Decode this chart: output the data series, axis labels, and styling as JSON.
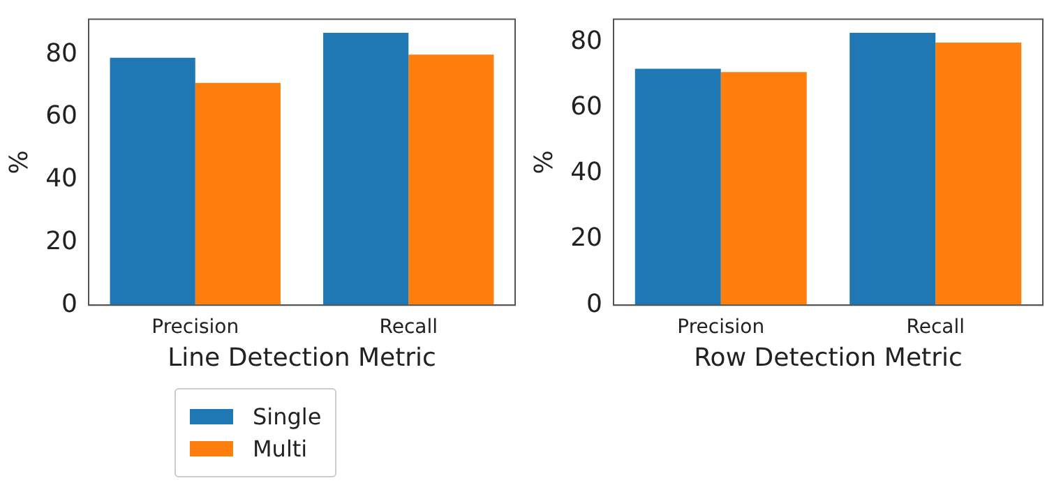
{
  "chart_data": [
    {
      "type": "bar",
      "xlabel": "Line Detection Metric",
      "ylabel": "%",
      "categories": [
        "Precision",
        "Recall"
      ],
      "series": [
        {
          "name": "Single",
          "color": "#1f77b4",
          "values": [
            79,
            87
          ]
        },
        {
          "name": "Multi",
          "color": "#ff7f0e",
          "values": [
            71,
            80
          ]
        }
      ],
      "ylim": [
        0,
        91.3
      ],
      "yticks": [
        0,
        20,
        40,
        60,
        80
      ],
      "grid": false,
      "legend": "bottom"
    },
    {
      "type": "bar",
      "xlabel": "Row Detection Metric",
      "ylabel": "%",
      "categories": [
        "Precision",
        "Recall"
      ],
      "series": [
        {
          "color": "#1f77b4",
          "values": [
            72,
            83
          ]
        },
        {
          "color": "#ff7f0e",
          "values": [
            71,
            80
          ]
        }
      ],
      "ylim": [
        0,
        87.1
      ],
      "yticks": [
        0,
        20,
        40,
        60,
        80
      ],
      "grid": false
    }
  ]
}
